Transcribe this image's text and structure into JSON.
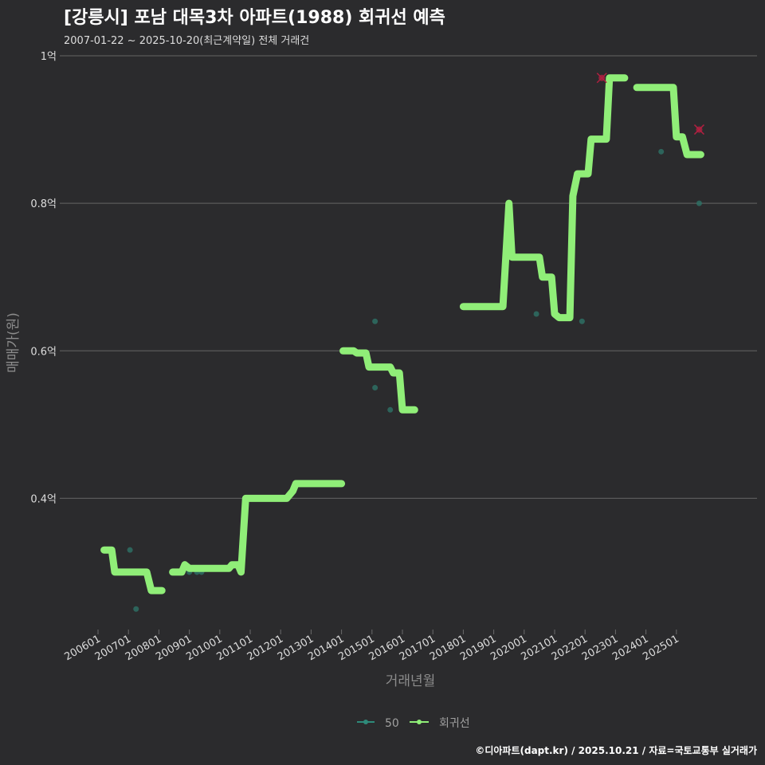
{
  "header": {
    "title": "[강릉시] 포남 대목3차 아파트(1988) 회귀선 예측",
    "subtitle": "2007-01-22 ~ 2025-10-20(최근계약일) 전체 거래건"
  },
  "footer": {
    "credit": "©디아파트(dapt.kr) / 2025.10.21 / 자료=국토교통부 실거래가"
  },
  "colors": {
    "background": "#2b2b2d",
    "grid": "#5a5a5a",
    "regression": "#90ee78",
    "points": "#2e6e64",
    "outlier": "#b02040",
    "text": "#dddddd"
  },
  "chart_data": {
    "type": "line",
    "title": "[강릉시] 포남 대목3차 아파트(1988) 회귀선 예측",
    "xlabel": "거래년월",
    "ylabel": "매매가(원)",
    "x_range": [
      2006.0,
      2026.0
    ],
    "ylim": [
      0.22,
      1.0
    ],
    "y_ticks": [
      {
        "value": 0.4,
        "label": "0.4억"
      },
      {
        "value": 0.6,
        "label": "0.6억"
      },
      {
        "value": 0.8,
        "label": "0.8억"
      },
      {
        "value": 1.0,
        "label": "1억"
      }
    ],
    "x_ticks": [
      "200601",
      "200701",
      "200801",
      "200901",
      "201001",
      "201101",
      "201201",
      "201301",
      "201401",
      "201501",
      "201601",
      "201701",
      "201801",
      "201901",
      "202001",
      "202101",
      "202201",
      "202301",
      "202401",
      "202501"
    ],
    "legend": [
      {
        "name": "50",
        "kind": "points"
      },
      {
        "name": "회귀선",
        "kind": "line"
      }
    ],
    "series": [
      {
        "name": "회귀선",
        "segments": [
          [
            [
              2006.2,
              0.33
            ],
            [
              2006.45,
              0.33
            ],
            [
              2006.55,
              0.3
            ],
            [
              2007.6,
              0.3
            ],
            [
              2007.75,
              0.275
            ],
            [
              2008.1,
              0.275
            ]
          ],
          [
            [
              2008.45,
              0.3
            ],
            [
              2008.75,
              0.3
            ],
            [
              2008.85,
              0.31
            ],
            [
              2009.0,
              0.305
            ],
            [
              2010.3,
              0.305
            ],
            [
              2010.4,
              0.31
            ],
            [
              2010.6,
              0.31
            ],
            [
              2010.7,
              0.3
            ],
            [
              2010.85,
              0.4
            ],
            [
              2012.2,
              0.4
            ],
            [
              2012.4,
              0.41
            ],
            [
              2012.5,
              0.42
            ],
            [
              2014.0,
              0.42
            ]
          ],
          [
            [
              2014.05,
              0.6
            ],
            [
              2014.4,
              0.6
            ],
            [
              2014.5,
              0.597
            ],
            [
              2014.8,
              0.597
            ],
            [
              2014.9,
              0.578
            ],
            [
              2015.6,
              0.578
            ],
            [
              2015.7,
              0.57
            ],
            [
              2015.9,
              0.57
            ],
            [
              2016.0,
              0.52
            ],
            [
              2016.4,
              0.52
            ]
          ],
          [
            [
              2018.0,
              0.66
            ],
            [
              2019.3,
              0.66
            ],
            [
              2019.5,
              0.8
            ],
            [
              2019.6,
              0.727
            ],
            [
              2020.5,
              0.727
            ],
            [
              2020.6,
              0.7
            ],
            [
              2020.9,
              0.7
            ],
            [
              2021.0,
              0.65
            ],
            [
              2021.15,
              0.645
            ],
            [
              2021.5,
              0.645
            ],
            [
              2021.6,
              0.81
            ],
            [
              2021.75,
              0.84
            ],
            [
              2022.1,
              0.84
            ],
            [
              2022.2,
              0.887
            ],
            [
              2022.7,
              0.887
            ],
            [
              2022.8,
              0.97
            ],
            [
              2023.3,
              0.97
            ]
          ],
          [
            [
              2023.7,
              0.957
            ],
            [
              2024.9,
              0.957
            ],
            [
              2025.0,
              0.89
            ],
            [
              2025.2,
              0.89
            ],
            [
              2025.35,
              0.866
            ],
            [
              2025.8,
              0.866
            ]
          ]
        ]
      },
      {
        "name": "50",
        "points": [
          {
            "x": 2007.05,
            "y": 0.33
          },
          {
            "x": 2007.25,
            "y": 0.25
          },
          {
            "x": 2009.0,
            "y": 0.3
          },
          {
            "x": 2009.25,
            "y": 0.3
          },
          {
            "x": 2009.4,
            "y": 0.3
          },
          {
            "x": 2015.1,
            "y": 0.64
          },
          {
            "x": 2015.1,
            "y": 0.55
          },
          {
            "x": 2015.6,
            "y": 0.52
          },
          {
            "x": 2020.4,
            "y": 0.65
          },
          {
            "x": 2021.9,
            "y": 0.64
          },
          {
            "x": 2024.5,
            "y": 0.87
          },
          {
            "x": 2025.75,
            "y": 0.8
          }
        ]
      }
    ],
    "outliers": [
      {
        "x": 2022.55,
        "y": 0.97
      },
      {
        "x": 2025.75,
        "y": 0.9
      }
    ]
  }
}
